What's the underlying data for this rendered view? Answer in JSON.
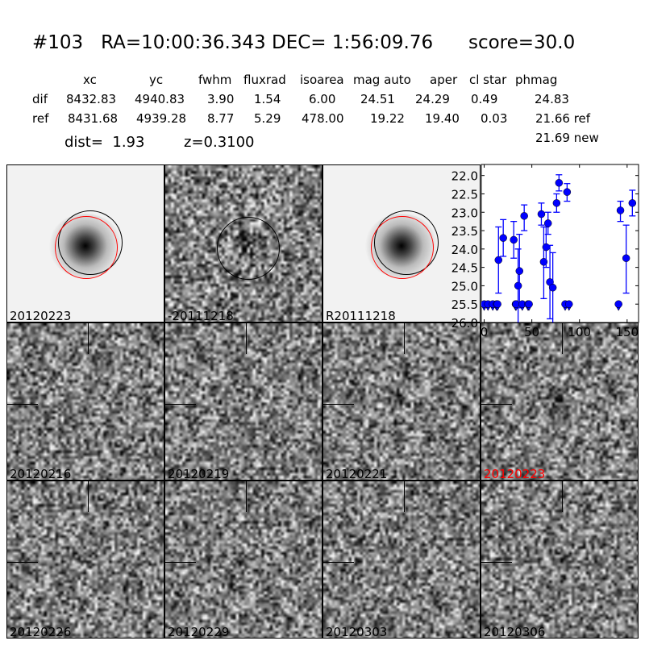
{
  "header": {
    "title": "#103   RA=10:00:36.343 DEC= 1:56:09.76      score=30.0",
    "columns": [
      "xc",
      "yc",
      "fwhm",
      "fluxrad",
      "isoarea",
      "mag auto",
      "aper",
      "cl star",
      "phmag"
    ],
    "rows": [
      {
        "label": "dif",
        "values": [
          "8432.83",
          "4940.83",
          "3.90",
          "1.54",
          "6.00",
          "24.51",
          "24.29",
          "0.49",
          "24.83"
        ]
      },
      {
        "label": "ref",
        "values": [
          "8431.68",
          "4939.28",
          "8.77",
          "5.29",
          "478.00",
          "19.22",
          "19.40",
          "0.03",
          "21.66 ref"
        ]
      }
    ],
    "dist": "dist=  1.93",
    "z": "z=0.3100",
    "new_mag": "21.69 new"
  },
  "stamps_top": [
    "20120223",
    "-20111218",
    "R20111218"
  ],
  "stamps": [
    {
      "label": "20120216",
      "color": "#000000"
    },
    {
      "label": "20120219",
      "color": "#000000"
    },
    {
      "label": "20120221",
      "color": "#000000"
    },
    {
      "label": "20120223",
      "color": "#ff0000"
    },
    {
      "label": "20120226",
      "color": "#000000"
    },
    {
      "label": "20120229",
      "color": "#000000"
    },
    {
      "label": "20120303",
      "color": "#000000"
    },
    {
      "label": "20120306",
      "color": "#000000"
    }
  ],
  "chart_data": {
    "type": "scatter",
    "title": "",
    "xlabel": "",
    "ylabel": "",
    "xlim": [
      -3,
      162
    ],
    "ylim": [
      26.0,
      21.7
    ],
    "y_inverted": true,
    "xticks": [
      "0",
      "50",
      "100",
      "150"
    ],
    "yticks": [
      "22.0",
      "22.5",
      "23.0",
      "23.5",
      "24.0",
      "24.5",
      "25.0",
      "25.5",
      "26.0"
    ],
    "color": "#0000ff",
    "detections": [
      {
        "x": 15,
        "y": 24.3,
        "lo": 23.4,
        "hi": 25.2
      },
      {
        "x": 20,
        "y": 23.7,
        "lo": 23.2,
        "hi": 24.2
      },
      {
        "x": 31,
        "y": 23.75,
        "lo": 23.25,
        "hi": 24.25
      },
      {
        "x": 35.6,
        "y": 25.0,
        "lo": 24.0,
        "hi": 26.2
      },
      {
        "x": 37,
        "y": 24.6,
        "lo": 23.6,
        "hi": 25.6
      },
      {
        "x": 42,
        "y": 23.1,
        "lo": 22.8,
        "hi": 23.5
      },
      {
        "x": 60,
        "y": 23.05,
        "lo": 22.75,
        "hi": 23.35
      },
      {
        "x": 62.5,
        "y": 24.35,
        "lo": 23.4,
        "hi": 25.35
      },
      {
        "x": 65,
        "y": 23.95,
        "lo": 23.4,
        "hi": 24.5
      },
      {
        "x": 67,
        "y": 23.3,
        "lo": 23.0,
        "hi": 23.6
      },
      {
        "x": 69,
        "y": 24.9,
        "lo": 23.9,
        "hi": 25.9
      },
      {
        "x": 72,
        "y": 25.05,
        "lo": 24.1,
        "hi": 26.2
      },
      {
        "x": 76,
        "y": 22.75,
        "lo": 22.5,
        "hi": 23.0
      },
      {
        "x": 78.5,
        "y": 22.2,
        "lo": 21.98,
        "hi": 22.42
      },
      {
        "x": 87,
        "y": 22.45,
        "lo": 22.22,
        "hi": 22.7
      },
      {
        "x": 143,
        "y": 22.95,
        "lo": 22.7,
        "hi": 23.25
      },
      {
        "x": 149,
        "y": 24.25,
        "lo": 23.35,
        "hi": 25.2
      },
      {
        "x": 155.5,
        "y": 22.75,
        "lo": 22.4,
        "hi": 23.1
      }
    ],
    "upper_limits": {
      "y": 25.5,
      "x": [
        0,
        4,
        9,
        13,
        14,
        33,
        33.5,
        40,
        46,
        47,
        85,
        89,
        141
      ]
    }
  }
}
